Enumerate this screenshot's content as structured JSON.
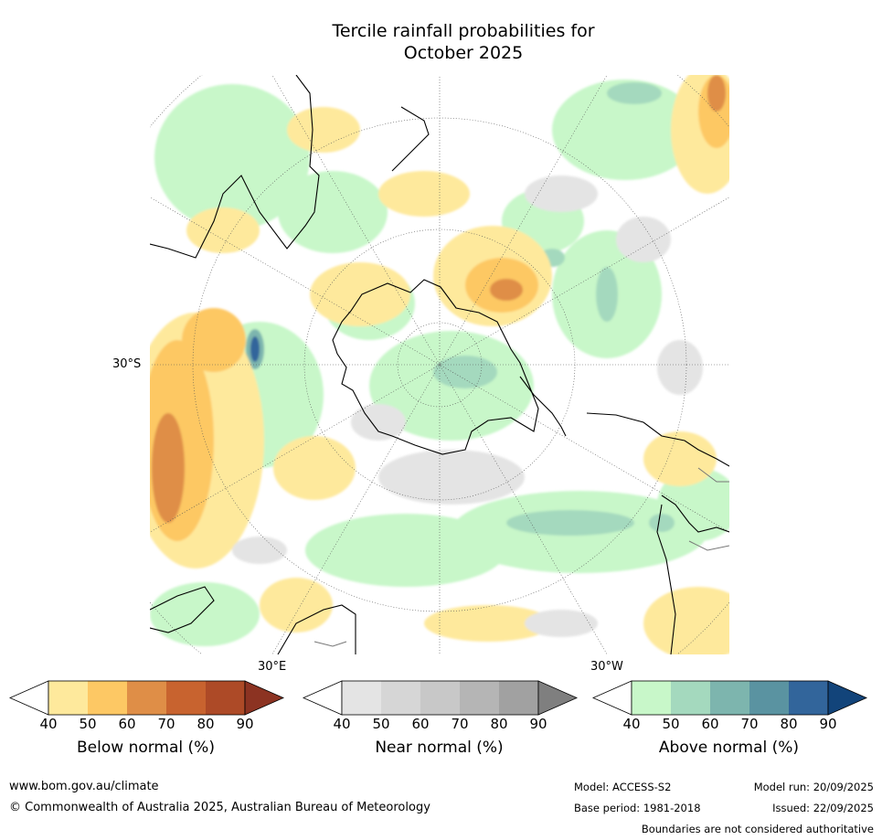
{
  "title_line1": "Tercile rainfall probabilities for",
  "title_line2": "October 2025",
  "map_labels": {
    "lat_30s": "30°S",
    "lon_30e": "30°E",
    "lon_30w": "30°W"
  },
  "colorbars": [
    {
      "title": "Below normal (%)",
      "ticks": [
        "40",
        "50",
        "60",
        "70",
        "80",
        "90"
      ],
      "colors": [
        "#ffffff",
        "#fee99c",
        "#fdc864",
        "#df8e47",
        "#c8632f",
        "#ad4a27",
        "#8c3322"
      ]
    },
    {
      "title": "Near normal (%)",
      "ticks": [
        "40",
        "50",
        "60",
        "70",
        "80",
        "90"
      ],
      "colors": [
        "#ffffff",
        "#e4e4e4",
        "#d6d6d6",
        "#c8c8c8",
        "#b5b5b5",
        "#a1a1a1",
        "#7f7f7f"
      ]
    },
    {
      "title": "Above normal (%)",
      "ticks": [
        "40",
        "50",
        "60",
        "70",
        "80",
        "90"
      ],
      "colors": [
        "#ffffff",
        "#c8f7c9",
        "#a4d9be",
        "#7db5ae",
        "#5a93a1",
        "#32659b",
        "#12447a"
      ]
    }
  ],
  "footer": {
    "url": "www.bom.gov.au/climate",
    "copyright": "© Commonwealth of Australia 2025, Australian Bureau of Meteorology",
    "model": "Model: ACCESS-S2",
    "base_period": "Base period: 1981-2018",
    "model_run": "Model run: 20/09/2025",
    "issued": "Issued: 22/09/2025",
    "disclaimer": "Boundaries are not considered authoritative"
  }
}
